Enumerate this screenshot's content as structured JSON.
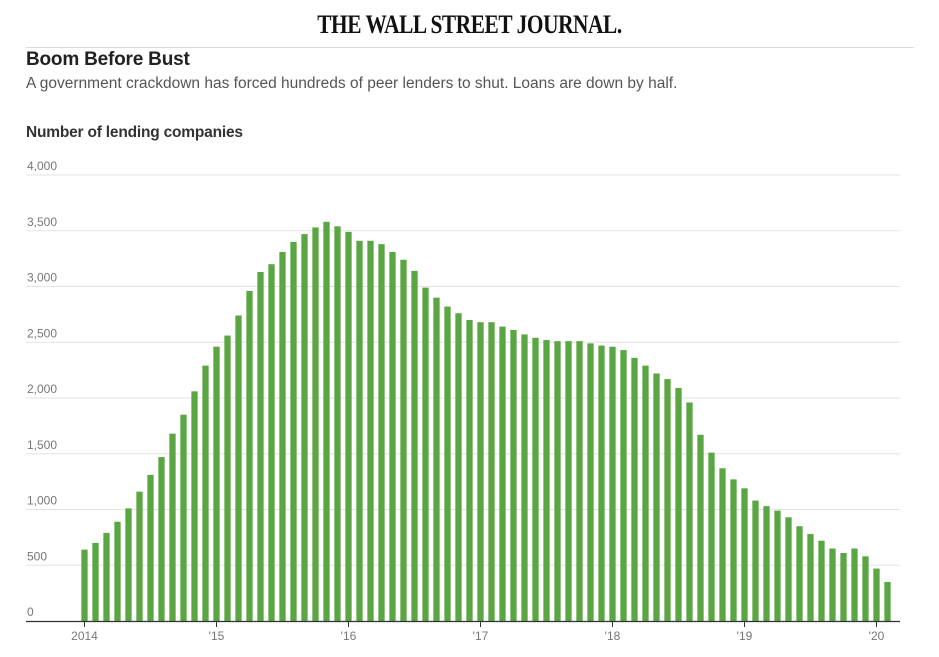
{
  "masthead": "THE WALL STREET JOURNAL.",
  "chart_data": {
    "type": "bar",
    "title": "Boom Before Bust",
    "subtitle": "A government crackdown has forced hundreds of peer lenders to shut. Loans are down by half.",
    "ylabel": "Number of lending companies",
    "xlabel": "",
    "ylim": [
      0,
      4000
    ],
    "yticks": [
      0,
      500,
      1000,
      1500,
      2000,
      2500,
      3000,
      3500,
      4000
    ],
    "ytick_labels": [
      "0",
      "500",
      "1,000",
      "1,500",
      "2,000",
      "2,500",
      "3,000",
      "3,500",
      "4,000"
    ],
    "xtick_labels": [
      "2014",
      "'15",
      "'16",
      "'17",
      "'18",
      "'19",
      "'20"
    ],
    "frequency": "monthly",
    "start": "2014-01",
    "grid": true,
    "bar_color": "#5aa642",
    "values": [
      640,
      700,
      790,
      890,
      1010,
      1160,
      1310,
      1470,
      1680,
      1850,
      2060,
      2290,
      2460,
      2560,
      2740,
      2960,
      3130,
      3200,
      3310,
      3400,
      3470,
      3530,
      3580,
      3540,
      3490,
      3410,
      3410,
      3380,
      3310,
      3240,
      3140,
      2990,
      2900,
      2820,
      2760,
      2700,
      2680,
      2680,
      2640,
      2610,
      2570,
      2540,
      2520,
      2510,
      2510,
      2510,
      2490,
      2470,
      2460,
      2430,
      2360,
      2290,
      2220,
      2170,
      2090,
      1960,
      1670,
      1510,
      1370,
      1270,
      1190,
      1080,
      1030,
      990,
      930,
      850,
      780,
      720,
      650,
      610,
      650,
      580,
      470,
      350
    ]
  }
}
